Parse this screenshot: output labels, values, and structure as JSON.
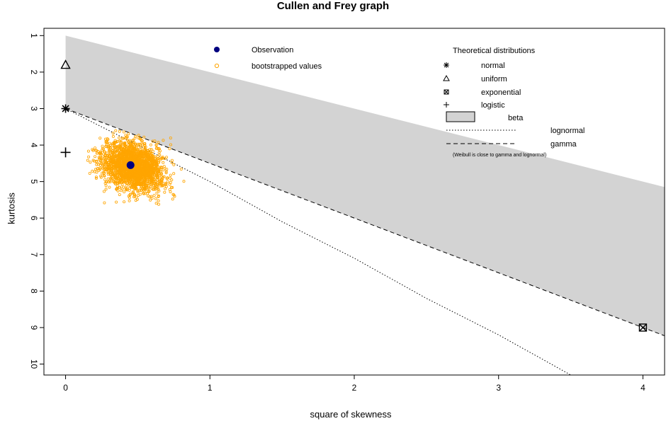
{
  "chart_data": {
    "type": "scatter",
    "title": "Cullen and Frey graph",
    "xlabel": "square of skewness",
    "ylabel": "kurtosis",
    "xlim": [
      -0.15,
      4.15
    ],
    "ylim": [
      10.3,
      0.8
    ],
    "x_ticks": [
      0,
      1,
      2,
      3,
      4
    ],
    "y_ticks": [
      1,
      2,
      3,
      4,
      5,
      6,
      7,
      8,
      9,
      10
    ],
    "observation": {
      "x": 0.45,
      "y": 4.55
    },
    "bootstrap": {
      "label": "bootstrapped values",
      "center_x": 0.45,
      "center_y": 4.55,
      "x_range": [
        0.15,
        0.85
      ],
      "y_range": [
        3.6,
        5.9
      ],
      "color": "#FFA500"
    },
    "theoretical_points": {
      "normal": {
        "x": 0,
        "y": 3
      },
      "uniform": {
        "x": 0,
        "y": 1.8
      },
      "exponential": {
        "x": 4,
        "y": 9
      },
      "logistic": {
        "x": 0,
        "y": 4.2
      }
    },
    "beta_region": {
      "upper_line": {
        "intercept": 1,
        "slope": 1
      },
      "lower_line": {
        "intercept": 3,
        "slope": 1.5
      },
      "color": "#D3D3D3"
    },
    "lognormal_curve": [
      [
        0,
        3
      ],
      [
        0.5,
        4.0
      ],
      [
        1,
        5.0
      ],
      [
        1.5,
        6.1
      ],
      [
        2,
        7.1
      ],
      [
        2.5,
        8.2
      ],
      [
        3,
        9.2
      ],
      [
        3.5,
        10.3
      ],
      [
        3.75,
        10.3
      ]
    ],
    "gamma_line": {
      "intercept": 3,
      "slope": 1.5
    },
    "legend_left": {
      "items": [
        "Observation",
        "bootstrapped values"
      ]
    },
    "legend_right": {
      "title": "Theoretical distributions",
      "items": [
        "normal",
        "uniform",
        "exponential",
        "logistic",
        "beta",
        "lognormal",
        "gamma"
      ],
      "note": "(Weibull is close to gamma and lognormal)"
    },
    "colors": {
      "observation": "#00007F",
      "bootstrap": "#FFA500",
      "beta": "#D3D3D3"
    }
  }
}
